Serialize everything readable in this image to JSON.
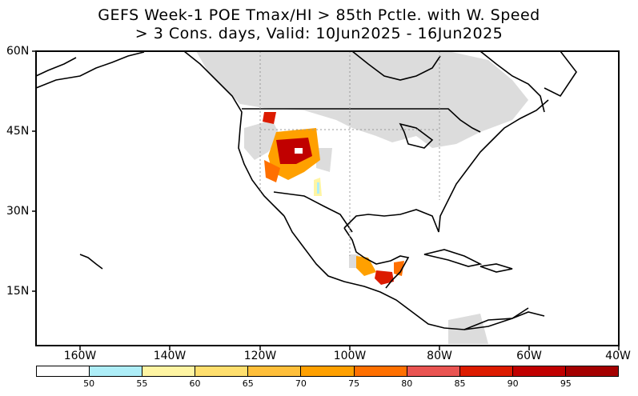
{
  "title": {
    "line1": "GEFS Week-1 POE Tmax/HI > 85th Pctle. with W. Speed",
    "line2": "> 3 Cons. days, Valid: 10Jun2025 - 16Jun2025"
  },
  "map": {
    "region": "North and Central America",
    "lon_labels": [
      "160W",
      "140W",
      "120W",
      "100W",
      "80W",
      "60W",
      "40W"
    ],
    "lat_labels": [
      "60N",
      "45N",
      "30N",
      "15N"
    ],
    "colors": {
      "land": "#ffffff",
      "ocean": "#ffffff",
      "no_data_mask": "#dcdcdc",
      "coast": "#000000"
    }
  },
  "colorbar": {
    "colors": [
      "#ffffff",
      "#aeeef8",
      "#fff5a3",
      "#ffdf6e",
      "#ffbf3a",
      "#ffa000",
      "#ff7000",
      "#e95452",
      "#dc1b00",
      "#c00000",
      "#a40000"
    ],
    "tick_labels": [
      "50",
      "55",
      "60",
      "65",
      "70",
      "75",
      "80",
      "85",
      "90",
      "95"
    ]
  }
}
